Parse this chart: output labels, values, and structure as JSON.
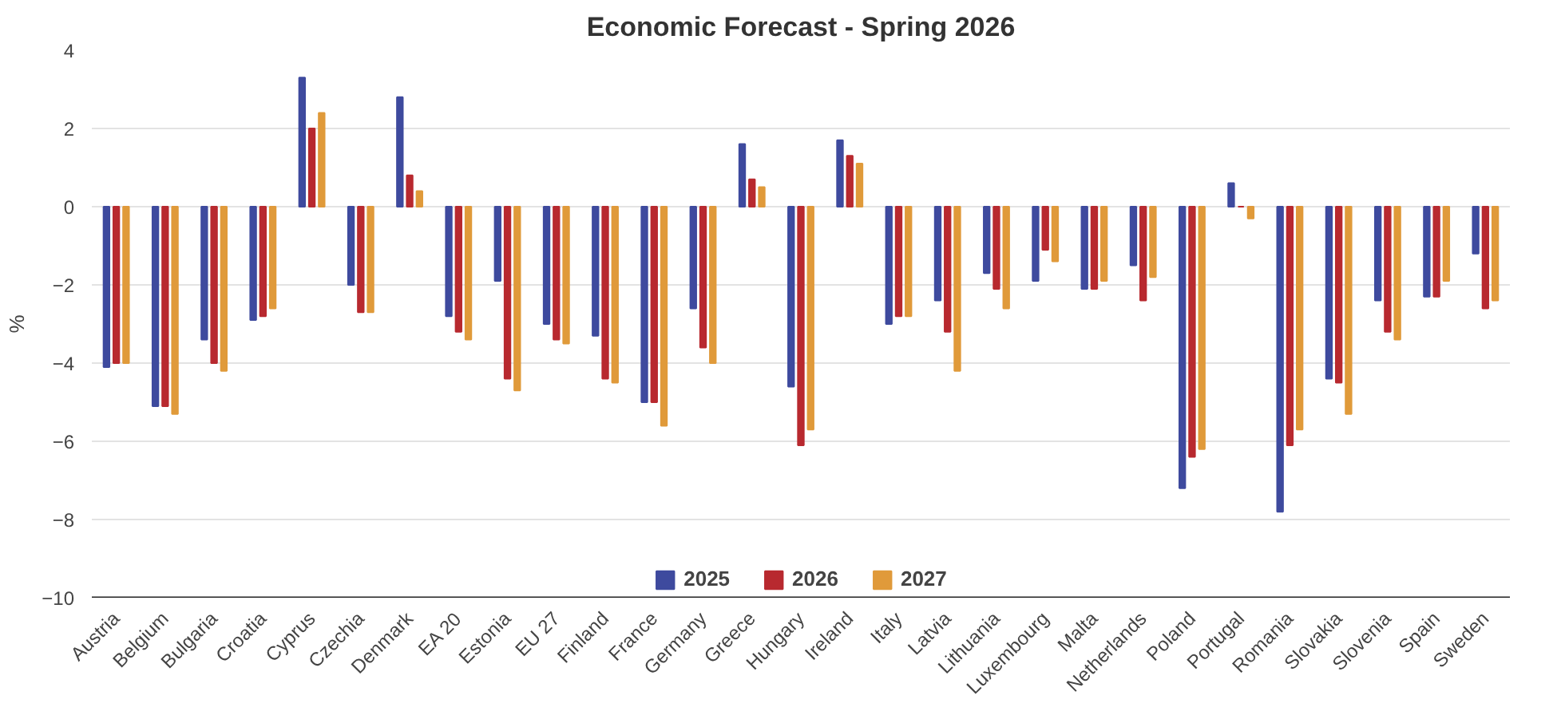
{
  "chart_data": {
    "type": "bar",
    "title": "Economic Forecast - Spring 2026",
    "ylabel": "%",
    "categories": [
      "Austria",
      "Belgium",
      "Bulgaria",
      "Croatia",
      "Cyprus",
      "Czechia",
      "Denmark",
      "EA 20",
      "Estonia",
      "EU 27",
      "Finland",
      "France",
      "Germany",
      "Greece",
      "Hungary",
      "Ireland",
      "Italy",
      "Latvia",
      "Lithuania",
      "Luxembourg",
      "Malta",
      "Netherlands",
      "Poland",
      "Portugal",
      "Romania",
      "Slovakia",
      "Slovenia",
      "Spain",
      "Sweden"
    ],
    "series": [
      {
        "name": "2025",
        "color": "#3e4a9e",
        "values": [
          -4.1,
          -5.1,
          -3.4,
          -2.9,
          3.3,
          -2.0,
          2.8,
          -2.8,
          -1.9,
          -3.0,
          -3.3,
          -5.0,
          -2.6,
          1.6,
          -4.6,
          1.7,
          -3.0,
          -2.4,
          -1.7,
          -1.9,
          -2.1,
          -1.5,
          -7.2,
          0.6,
          -7.8,
          -4.4,
          -2.4,
          -2.3,
          -1.2
        ]
      },
      {
        "name": "2026",
        "color": "#b8292f",
        "values": [
          -4.0,
          -5.1,
          -4.0,
          -2.8,
          2.0,
          -2.7,
          0.8,
          -3.2,
          -4.4,
          -3.4,
          -4.4,
          -5.0,
          -3.6,
          0.7,
          -6.1,
          1.3,
          -2.8,
          -3.2,
          -2.1,
          -1.1,
          -2.1,
          -2.4,
          -6.4,
          0.0,
          -6.1,
          -4.5,
          -3.2,
          -2.3,
          -2.6
        ]
      },
      {
        "name": "2027",
        "color": "#e09a3a",
        "values": [
          -4.0,
          -5.3,
          -4.2,
          -2.6,
          2.4,
          -2.7,
          0.4,
          -3.4,
          -4.7,
          -3.5,
          -4.5,
          -5.6,
          -4.0,
          0.5,
          -5.7,
          1.1,
          -2.8,
          -4.2,
          -2.6,
          -1.4,
          -1.9,
          -1.8,
          -6.2,
          -0.3,
          -5.7,
          -5.3,
          -3.4,
          -1.9,
          -2.4
        ]
      }
    ],
    "ylim": [
      -10,
      4
    ],
    "yticks": [
      -10,
      -8,
      -6,
      -4,
      -2,
      0,
      2,
      4
    ],
    "grid": "y",
    "legend": "bottom"
  }
}
